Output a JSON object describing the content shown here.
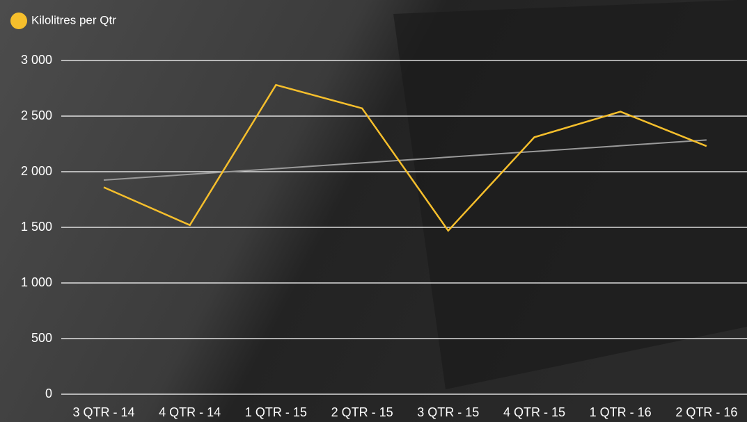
{
  "chart_data": {
    "type": "line",
    "categories": [
      "3 QTR - 14",
      "4 QTR - 14",
      "1 QTR - 15",
      "2 QTR - 15",
      "3 QTR - 15",
      "4 QTR - 15",
      "1 QTR - 16",
      "2 QTR - 16"
    ],
    "series": [
      {
        "name": "Kilolitres per Qtr",
        "color": "#f6bf2c",
        "values": [
          1860,
          1520,
          2780,
          2570,
          1470,
          2310,
          2540,
          2230
        ]
      }
    ],
    "trend": {
      "color": "#9a9a9a",
      "values": [
        1925,
        2285
      ]
    },
    "ylim": [
      0,
      3000
    ],
    "yticks": [
      0,
      500,
      {
        "value": 1000,
        "label": "1 000"
      },
      {
        "value": 1500,
        "label": "1 500"
      },
      {
        "value": 2000,
        "label": "2 000"
      },
      {
        "value": 2500,
        "label": "2 500"
      },
      {
        "value": 3000,
        "label": "3 000"
      }
    ],
    "grid": true
  }
}
